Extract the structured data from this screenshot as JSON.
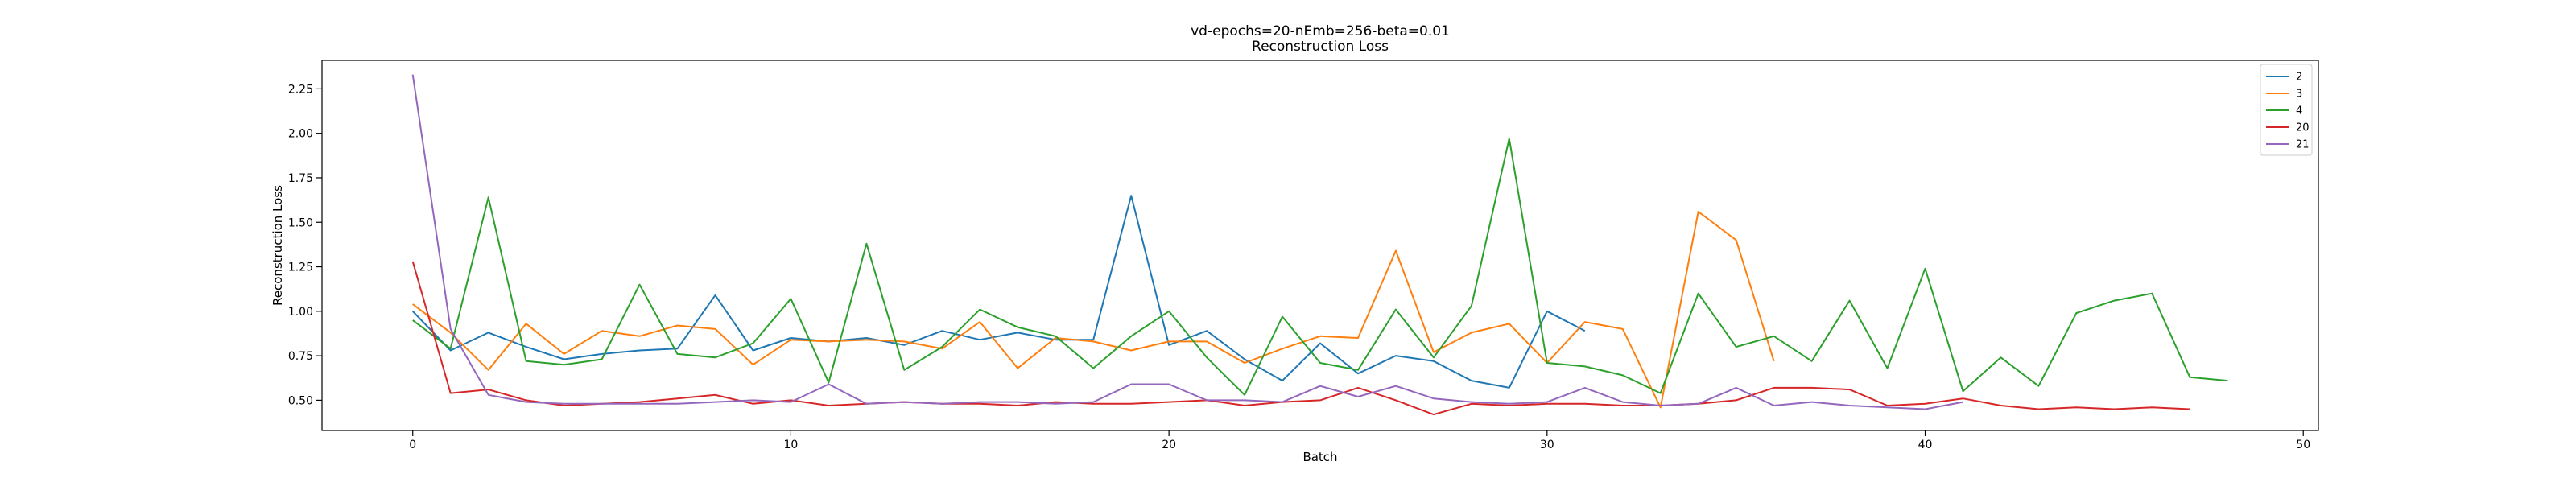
{
  "chart_data": {
    "type": "line",
    "title": "vd-epochs=20-nEmb=256-beta=0.01",
    "subtitle": "Reconstruction Loss",
    "xlabel": "Batch",
    "ylabel": "Reconstruction Loss",
    "xlim": [
      -2.4,
      50.4
    ],
    "ylim": [
      0.33,
      2.41
    ],
    "xticks": [
      0,
      10,
      20,
      30,
      40,
      50
    ],
    "xtick_labels": [
      "0",
      "10",
      "20",
      "30",
      "40",
      "50"
    ],
    "yticks": [
      0.5,
      0.75,
      1.0,
      1.25,
      1.5,
      1.75,
      2.0,
      2.25
    ],
    "ytick_labels": [
      "0.50",
      "0.75",
      "1.00",
      "1.25",
      "1.50",
      "1.75",
      "2.00",
      "2.25"
    ],
    "grid": false,
    "legend_position": "upper right",
    "series": [
      {
        "name": "2",
        "color": "#1f77b4",
        "values": [
          1.0,
          0.78,
          0.88,
          0.8,
          0.73,
          0.76,
          0.78,
          0.79,
          1.09,
          0.78,
          0.85,
          0.83,
          0.85,
          0.81,
          0.89,
          0.84,
          0.88,
          0.84,
          0.84,
          1.65,
          0.81,
          0.89,
          0.73,
          0.61,
          0.82,
          0.65,
          0.75,
          0.72,
          0.61,
          0.57,
          1.0,
          0.89
        ]
      },
      {
        "name": "3",
        "color": "#ff7f0e",
        "values": [
          1.04,
          0.88,
          0.67,
          0.93,
          0.76,
          0.89,
          0.86,
          0.92,
          0.9,
          0.7,
          0.84,
          0.83,
          0.84,
          0.83,
          0.79,
          0.94,
          0.68,
          0.85,
          0.83,
          0.78,
          0.83,
          0.83,
          0.71,
          0.79,
          0.86,
          0.85,
          1.34,
          0.77,
          0.88,
          0.93,
          0.71,
          0.94,
          0.9,
          0.46,
          1.56,
          1.4,
          0.72
        ]
      },
      {
        "name": "4",
        "color": "#2ca02c",
        "values": [
          0.95,
          0.79,
          1.64,
          0.72,
          0.7,
          0.73,
          1.15,
          0.76,
          0.74,
          0.82,
          1.07,
          0.6,
          1.38,
          0.67,
          0.8,
          1.01,
          0.91,
          0.86,
          0.68,
          0.86,
          1.0,
          0.74,
          0.53,
          0.97,
          0.71,
          0.67,
          1.01,
          0.74,
          1.03,
          1.97,
          0.71,
          0.69,
          0.64,
          0.54,
          1.1,
          0.8,
          0.86,
          0.72,
          1.06,
          0.68,
          1.24,
          0.55,
          0.74,
          0.58,
          0.99,
          1.06,
          1.1,
          0.63,
          0.61
        ]
      },
      {
        "name": "20",
        "color": "#d62728",
        "values": [
          1.28,
          0.54,
          0.56,
          0.5,
          0.47,
          0.48,
          0.49,
          0.51,
          0.53,
          0.48,
          0.5,
          0.47,
          0.48,
          0.49,
          0.48,
          0.48,
          0.47,
          0.49,
          0.48,
          0.48,
          0.49,
          0.5,
          0.47,
          0.49,
          0.5,
          0.57,
          0.5,
          0.42,
          0.48,
          0.47,
          0.48,
          0.48,
          0.47,
          0.47,
          0.48,
          0.5,
          0.57,
          0.57,
          0.56,
          0.47,
          0.48,
          0.51,
          0.47,
          0.45,
          0.46,
          0.45,
          0.46,
          0.45
        ]
      },
      {
        "name": "21",
        "color": "#9467bd",
        "values": [
          2.33,
          0.9,
          0.53,
          0.49,
          0.48,
          0.48,
          0.48,
          0.48,
          0.49,
          0.5,
          0.49,
          0.59,
          0.48,
          0.49,
          0.48,
          0.49,
          0.49,
          0.48,
          0.49,
          0.59,
          0.59,
          0.5,
          0.5,
          0.49,
          0.58,
          0.52,
          0.58,
          0.51,
          0.49,
          0.48,
          0.49,
          0.57,
          0.49,
          0.47,
          0.48,
          0.57,
          0.47,
          0.49,
          0.47,
          0.46,
          0.45,
          0.49
        ]
      }
    ]
  }
}
